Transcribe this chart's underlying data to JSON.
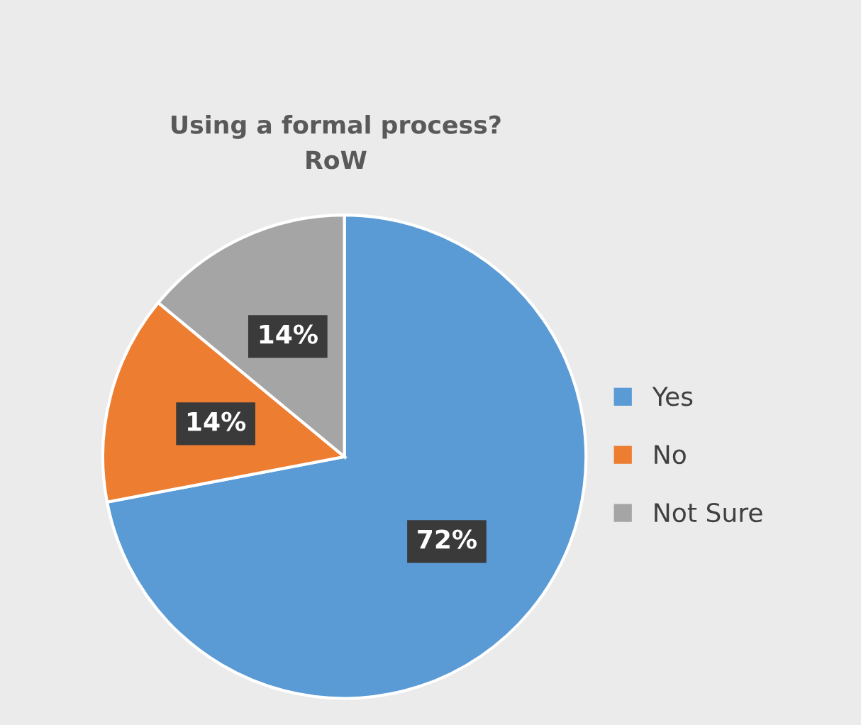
{
  "chart_data": {
    "type": "pie",
    "title": "Using a formal process?\nRoW",
    "categories": [
      "Yes",
      "No",
      "Not Sure"
    ],
    "values": [
      72,
      14,
      14
    ],
    "colors": [
      "#5b9bd5",
      "#ed7d31",
      "#a5a5a5"
    ],
    "value_labels": [
      "72%",
      "14%",
      "14%"
    ],
    "legend": "right"
  }
}
